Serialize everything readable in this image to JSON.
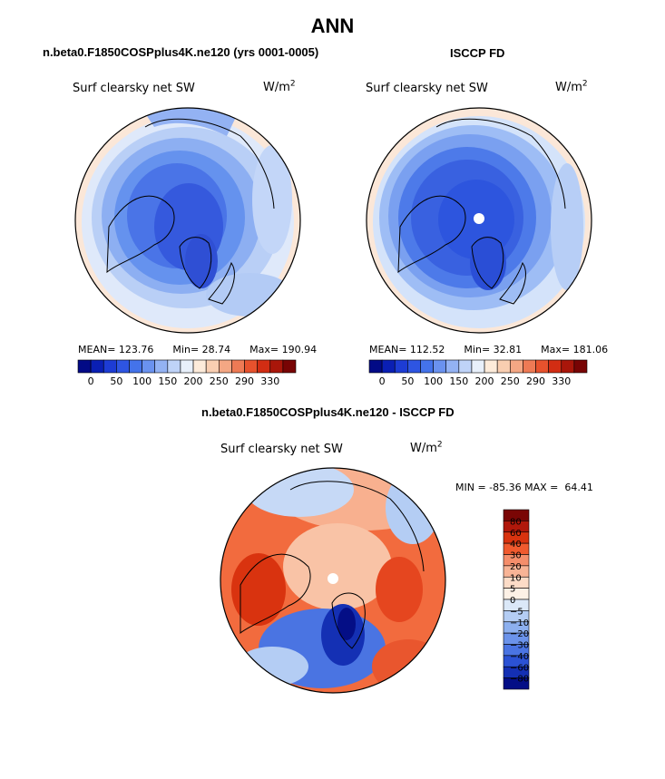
{
  "figure": {
    "title": "ANN",
    "left_panel_title": "n.beta0.F1850COSPplus4K.ne120 (yrs 0001-0005)",
    "right_panel_title": "ISCCP FD",
    "diff_panel_title": "n.beta0.F1850COSPplus4K.ne120 - ISCCP FD"
  },
  "panels": {
    "left": {
      "variable": "Surf clearsky net SW",
      "units": "W/m2",
      "stats": {
        "mean_label": "MEAN=",
        "mean": "123.76",
        "min_label": "Min=",
        "min": "28.74",
        "max_label": "Max=",
        "max": "190.94"
      }
    },
    "right": {
      "variable": "Surf clearsky net SW",
      "units": "W/m2",
      "stats": {
        "mean_label": "MEAN=",
        "mean": "112.52",
        "min_label": "Min=",
        "min": "32.81",
        "max_label": "Max=",
        "max": "181.06"
      }
    },
    "diff": {
      "variable": "Surf clearsky net SW",
      "units": "W/m2",
      "minmax_text": "MIN = -85.36 MAX =  64.41"
    }
  },
  "colorbars": {
    "field": {
      "colors": [
        "#020a86",
        "#0a1fb4",
        "#1d3cd4",
        "#2e55e2",
        "#4473ea",
        "#6a92ef",
        "#93b2f3",
        "#bfd3f8",
        "#e8f0fb",
        "#fdebda",
        "#f9ceb1",
        "#f4a784",
        "#ee7a55",
        "#e7522d",
        "#d22d13",
        "#a9160a",
        "#780404"
      ],
      "tick_labels": [
        "0",
        "50",
        "100",
        "150",
        "200",
        "250",
        "290",
        "330"
      ]
    },
    "diff": {
      "colors": [
        "#7a0605",
        "#b1180b",
        "#d9330f",
        "#f05a2e",
        "#f58e6b",
        "#f8b496",
        "#fcdcc7",
        "#fdf1e6",
        "#dbe8f8",
        "#b4cdf4",
        "#8db0ef",
        "#6b93ea",
        "#4a74e2",
        "#2b52d4",
        "#1430b4",
        "#040e86"
      ],
      "tick_labels": [
        "80",
        "60",
        "40",
        "30",
        "20",
        "10",
        "5",
        "0",
        "−5",
        "−10",
        "−20",
        "−30",
        "−40",
        "−60",
        "−80"
      ]
    }
  }
}
